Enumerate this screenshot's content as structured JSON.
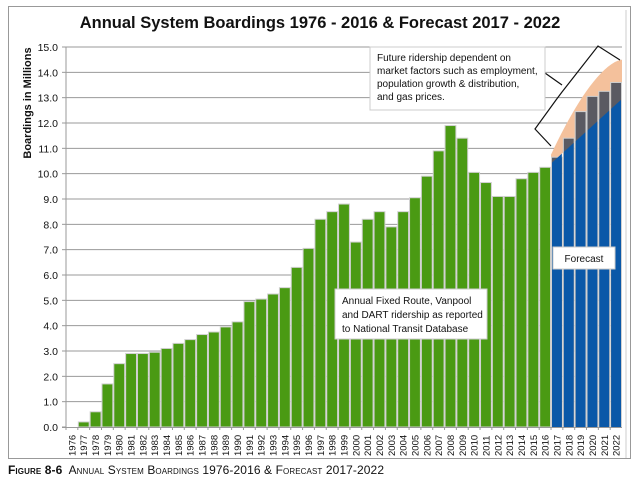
{
  "chart_data": {
    "type": "bar",
    "title": "Annual System Boardings 1976 - 2016 & Forecast 2017 - 2022",
    "ylabel": "Boardings in Millions",
    "xlabel": "",
    "ylim": [
      0,
      15
    ],
    "yticks": [
      "0.0",
      "1.0",
      "2.0",
      "3.0",
      "4.0",
      "5.0",
      "6.0",
      "7.0",
      "8.0",
      "9.0",
      "10.0",
      "11.0",
      "12.0",
      "13.0",
      "14.0",
      "15.0"
    ],
    "grid": true,
    "categories": [
      "1976",
      "1977",
      "1978",
      "1979",
      "1980",
      "1981",
      "1982",
      "1983",
      "1984",
      "1985",
      "1986",
      "1987",
      "1988",
      "1989",
      "1990",
      "1991",
      "1992",
      "1993",
      "1994",
      "1995",
      "1996",
      "1997",
      "1998",
      "1999",
      "2000",
      "2001",
      "2002",
      "2003",
      "2004",
      "2005",
      "2006",
      "2007",
      "2008",
      "2009",
      "2010",
      "2011",
      "2012",
      "2013",
      "2014",
      "2015",
      "2016",
      "2017",
      "2018",
      "2019",
      "2020",
      "2021",
      "2022"
    ],
    "series": [
      {
        "values": [
          0,
          0.2,
          0.6,
          1.7,
          2.5,
          2.9,
          2.9,
          2.95,
          3.1,
          3.3,
          3.45,
          3.65,
          3.75,
          3.95,
          4.15,
          4.95,
          5.05,
          5.25,
          5.5,
          6.3,
          7.05,
          8.2,
          8.5,
          8.8,
          7.3,
          8.2,
          8.5,
          7.9,
          8.5,
          9.05,
          9.9,
          10.9,
          11.9,
          11.4,
          10.05,
          9.65,
          9.1,
          9.1,
          9.8,
          10.05,
          10.25,
          null,
          null,
          null,
          null,
          null,
          null
        ],
        "color": "#4a9a13"
      },
      {
        "values": [
          null,
          null,
          null,
          null,
          null,
          null,
          null,
          null,
          null,
          null,
          null,
          null,
          null,
          null,
          null,
          null,
          null,
          null,
          null,
          null,
          null,
          null,
          null,
          null,
          null,
          null,
          null,
          null,
          null,
          null,
          null,
          null,
          null,
          null,
          null,
          null,
          null,
          null,
          null,
          null,
          null,
          10.65,
          11.4,
          12.45,
          13.05,
          13.25,
          13.6
        ],
        "color": "#5a5a62"
      }
    ],
    "forecast_band": {
      "low_start": 10.4,
      "low_end": 12.95,
      "high_start": 10.75,
      "high_end": 14.5,
      "low_color": "#0a58a8",
      "high_color": "#f4c19c"
    },
    "annotations": {
      "future_note": [
        "Future ridership dependent on",
        "market factors such as employment,",
        "population growth & distribution,",
        "and gas prices."
      ],
      "history_note": [
        "Annual Fixed Route, Vanpool",
        "and DART ridership as reported",
        "to National Transit Database"
      ],
      "forecast_label": "Forecast"
    }
  },
  "caption": {
    "figure": "Figure 8-6",
    "text": "Annual System Boardings 1976-2016 & Forecast 2017-2022"
  }
}
